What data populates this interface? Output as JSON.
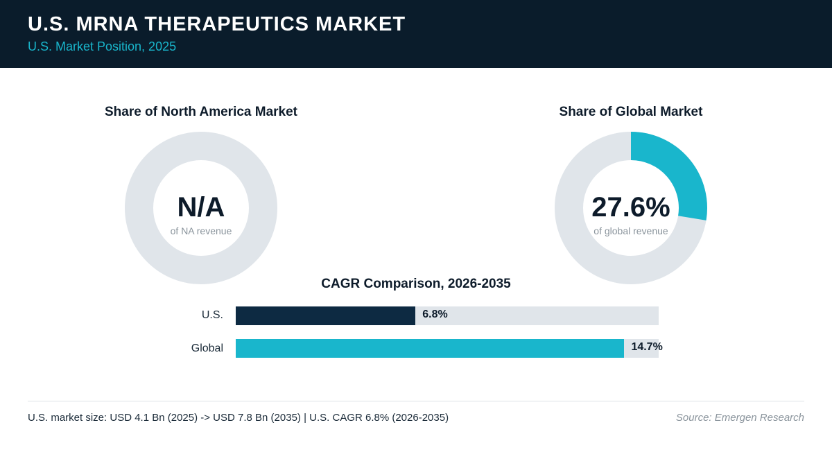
{
  "header": {
    "title": "U.S. MRNA THERAPEUTICS MARKET",
    "subtitle": "U.S. Market Position, 2025"
  },
  "colors": {
    "header_bg": "#0a1c2b",
    "accent": "#19b6cc",
    "us_bar": "#0d2a42",
    "track": "#e0e5ea"
  },
  "chart_data": [
    {
      "type": "pie",
      "title": "Share of North America Market",
      "display_value": "N/A",
      "caption": "of NA revenue",
      "value": null,
      "donut": true
    },
    {
      "type": "pie",
      "title": "Share of Global Market",
      "display_value": "27.6%",
      "caption": "of global revenue",
      "value": 27.6,
      "donut": true
    },
    {
      "type": "bar",
      "orientation": "horizontal",
      "title": "CAGR Comparison, 2026-2035",
      "categories": [
        "U.S.",
        "Global"
      ],
      "values": [
        6.8,
        14.7
      ],
      "value_labels": [
        "6.8%",
        "14.7%"
      ],
      "xlim": [
        0,
        16
      ]
    }
  ],
  "footer": {
    "summary": "U.S. market size: USD 4.1 Bn (2025) -> USD 7.8 Bn (2035)  |  U.S. CAGR 6.8% (2026-2035)",
    "source": "Source: Emergen Research"
  }
}
